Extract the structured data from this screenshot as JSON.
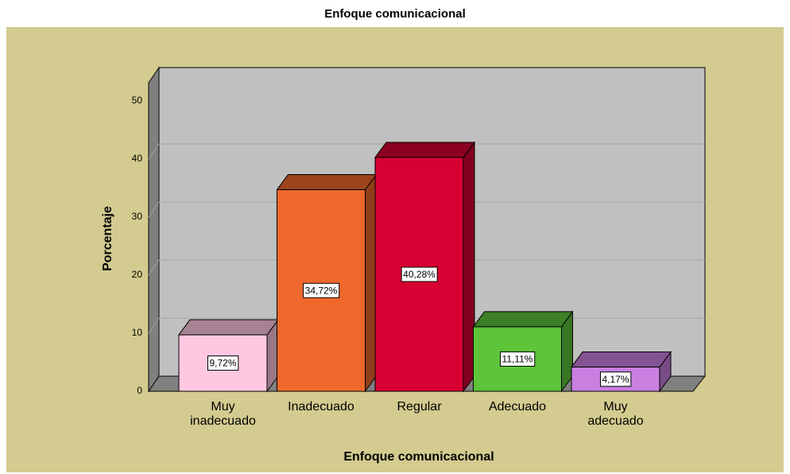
{
  "chart_data": {
    "type": "bar3d",
    "title": "Enfoque comunicacional",
    "x_label": "Enfoque comunicacional",
    "y_label": "Porcentaje",
    "categories": [
      "Muy inadecuado",
      "Inadecuado",
      "Regular",
      "Adecuado",
      "Muy adecuado"
    ],
    "values": [
      9.72,
      34.72,
      40.28,
      11.11,
      4.17
    ],
    "value_labels": [
      "9,72%",
      "34,72%",
      "40,28%",
      "11,11%",
      "4,17%"
    ],
    "colors": [
      "#ffc8e0",
      "#f0682c",
      "#d60032",
      "#5ec43a",
      "#c97fe0"
    ],
    "ylim": [
      0,
      50
    ],
    "yticks": [
      0,
      10,
      20,
      30,
      40,
      50
    ],
    "grid": true
  }
}
